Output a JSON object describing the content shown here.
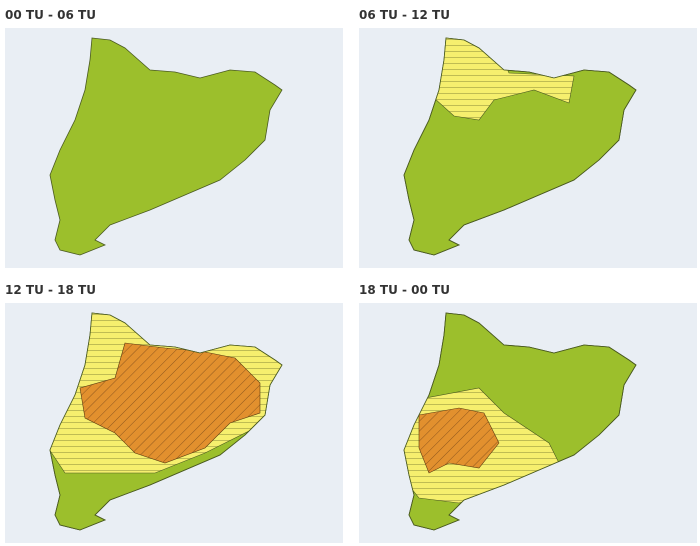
{
  "panels": [
    {
      "title": "00 TU - 06 TU"
    },
    {
      "title": "06 TU - 12 TU"
    },
    {
      "title": "12 TU - 18 TU"
    },
    {
      "title": "18 TU - 00 TU"
    }
  ]
}
